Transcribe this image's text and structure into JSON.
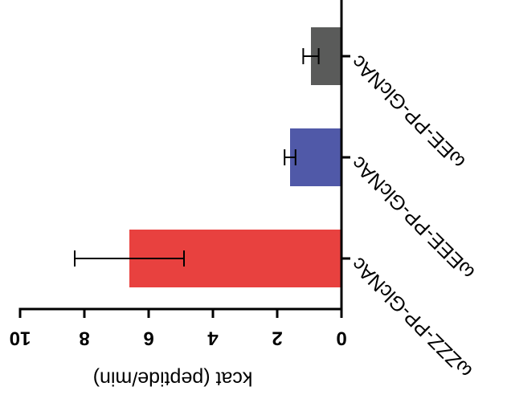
{
  "chart_data": {
    "type": "bar",
    "y_label": "kcat (peptide/min)",
    "categories": [
      "ωZZZ-PP-GlcNAc",
      "ωEEE-PP-GlcNAc",
      "ωEE-PP-GlcNAc"
    ],
    "values": [
      6.6,
      1.6,
      0.95
    ],
    "errors": [
      1.7,
      0.17,
      0.24
    ],
    "colors": [
      "#e8413f",
      "#5059a8",
      "#5a5b5a"
    ],
    "ylim": [
      0,
      10
    ],
    "yticks": [
      0,
      2,
      4,
      6,
      8,
      10
    ]
  }
}
